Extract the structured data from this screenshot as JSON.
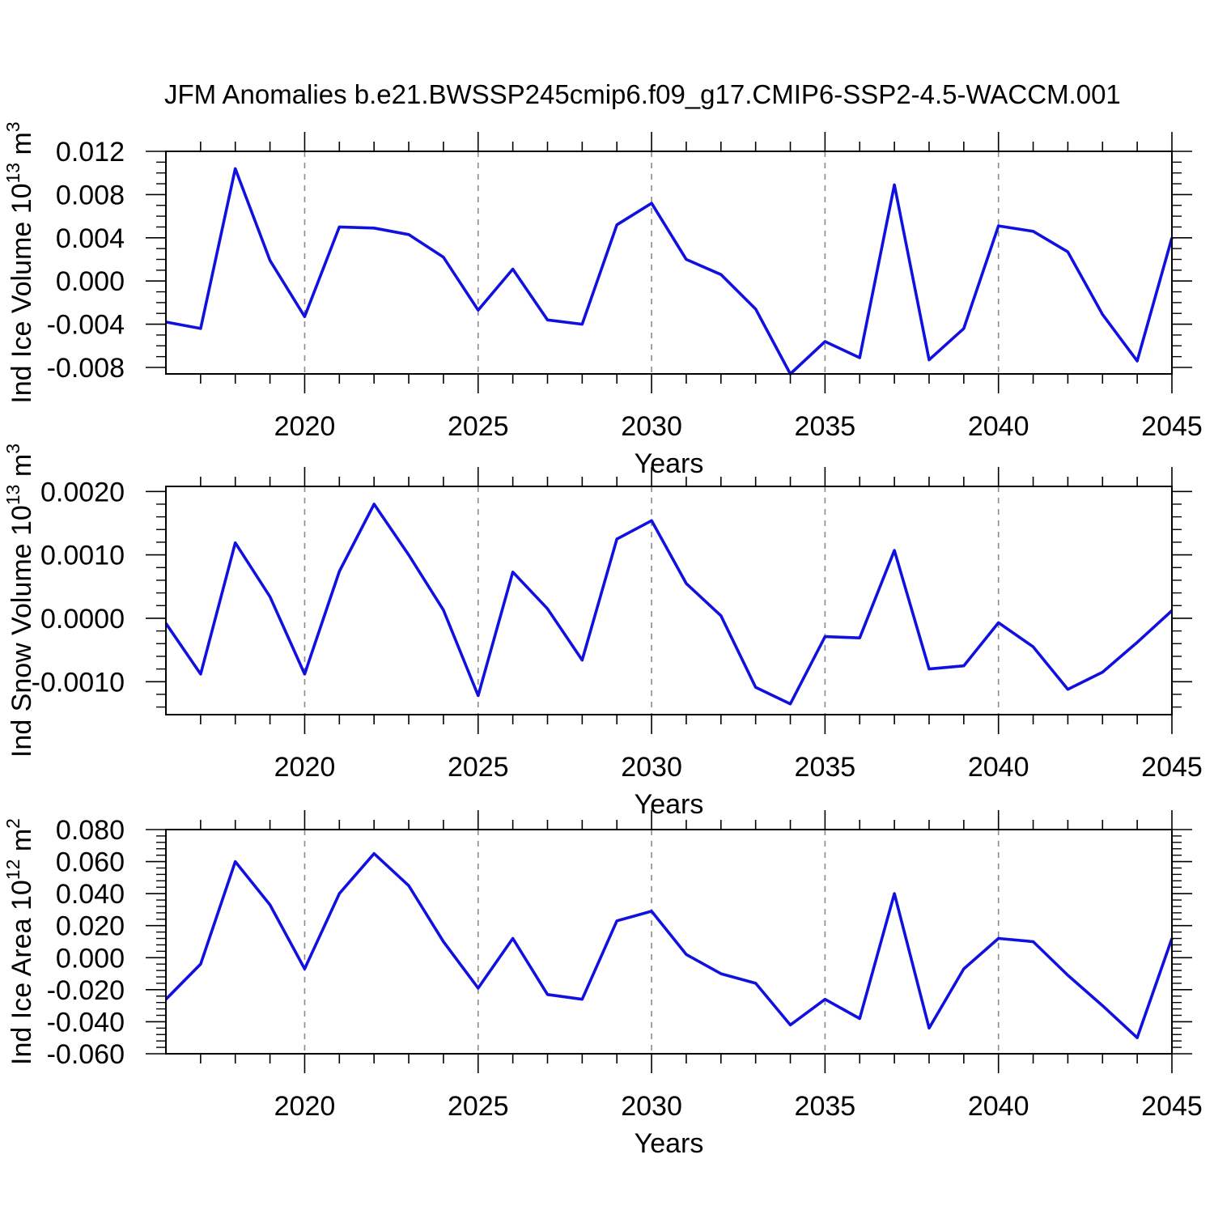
{
  "title": "JFM Anomalies b.e21.BWSSP245cmip6.f09_g17.CMIP6-SSP2-4.5-WACCM.001",
  "colors": {
    "line": "#1010e0",
    "grid": "#8c8c8c",
    "axis": "#000000"
  },
  "x_axis": {
    "label": "Years",
    "range": [
      2016,
      2045
    ],
    "major_tick_labels": [
      "2020",
      "2025",
      "2030",
      "2035",
      "2040",
      "2045"
    ],
    "major_ticks": [
      2020,
      2025,
      2030,
      2035,
      2040,
      2045
    ],
    "grid_years": [
      2020,
      2025,
      2030,
      2035,
      2040
    ],
    "minor_tick_step": 1
  },
  "chart_data": [
    {
      "type": "line",
      "id": "ice-volume",
      "ylabel": "Ind Ice Volume 10^13 m^3",
      "ylabel_parts": [
        [
          "Ind Ice Volume 10",
          false
        ],
        [
          "13",
          true
        ],
        [
          " m",
          false
        ],
        [
          "3",
          true
        ]
      ],
      "xlabel": "Years",
      "x": [
        2016,
        2017,
        2018,
        2019,
        2020,
        2021,
        2022,
        2023,
        2024,
        2025,
        2026,
        2027,
        2028,
        2029,
        2030,
        2031,
        2032,
        2033,
        2034,
        2035,
        2036,
        2037,
        2038,
        2039,
        2040,
        2041,
        2042,
        2043,
        2044,
        2045
      ],
      "values": [
        -0.0038,
        -0.0044,
        0.0104,
        0.0019,
        -0.0033,
        0.005,
        0.0049,
        0.0043,
        0.0022,
        -0.0027,
        0.0011,
        -0.0036,
        -0.004,
        0.0052,
        0.0072,
        0.002,
        0.0006,
        -0.0026,
        -0.0086,
        -0.0056,
        -0.0071,
        0.0089,
        -0.0073,
        -0.0044,
        0.0051,
        0.0046,
        0.0027,
        -0.0031,
        -0.0074,
        0.004
      ],
      "ylim": [
        -0.0086,
        0.012
      ],
      "ytick_values": [
        0.012,
        0.008,
        0.004,
        0.0,
        -0.004,
        -0.008
      ],
      "ytick_labels": [
        "0.012",
        "0.008",
        "0.004",
        "0.000",
        "-0.004",
        "-0.008"
      ],
      "yminor_step": 0.001
    },
    {
      "type": "line",
      "id": "snow-volume",
      "ylabel": "Ind Snow Volume 10^13 m^3",
      "ylabel_parts": [
        [
          "Ind Snow Volume 10",
          false
        ],
        [
          "13",
          true
        ],
        [
          " m",
          false
        ],
        [
          "3",
          true
        ]
      ],
      "xlabel": "Years",
      "x": [
        2016,
        2017,
        2018,
        2019,
        2020,
        2021,
        2022,
        2023,
        2024,
        2025,
        2026,
        2027,
        2028,
        2029,
        2030,
        2031,
        2032,
        2033,
        2034,
        2035,
        2036,
        2037,
        2038,
        2039,
        2040,
        2041,
        2042,
        2043,
        2044,
        2045
      ],
      "values": [
        -8e-05,
        -0.00088,
        0.00119,
        0.00034,
        -0.00088,
        0.00074,
        0.0018,
        0.001,
        0.00013,
        -0.00122,
        0.00073,
        0.00015,
        -0.00066,
        0.00125,
        0.00154,
        0.00055,
        4e-05,
        -0.00109,
        -0.00135,
        -0.00029,
        -0.00031,
        0.00107,
        -0.0008,
        -0.00075,
        -7e-05,
        -0.00045,
        -0.00112,
        -0.00085,
        -0.00038,
        0.00012
      ],
      "ylim": [
        -0.00152,
        0.00208
      ],
      "ytick_values": [
        0.002,
        0.001,
        0.0,
        -0.001
      ],
      "ytick_labels": [
        "0.0020",
        "0.0010",
        "0.0000",
        "-0.0010"
      ],
      "yminor_step": 0.0002
    },
    {
      "type": "line",
      "id": "ice-area",
      "ylabel": "Ind Ice Area 10^12 m^2",
      "ylabel_parts": [
        [
          "Ind Ice Area 10",
          false
        ],
        [
          "12",
          true
        ],
        [
          " m",
          false
        ],
        [
          "2",
          true
        ]
      ],
      "xlabel": "Years",
      "x": [
        2016,
        2017,
        2018,
        2019,
        2020,
        2021,
        2022,
        2023,
        2024,
        2025,
        2026,
        2027,
        2028,
        2029,
        2030,
        2031,
        2032,
        2033,
        2034,
        2035,
        2036,
        2037,
        2038,
        2039,
        2040,
        2041,
        2042,
        2043,
        2044,
        2045
      ],
      "values": [
        -0.026,
        -0.004,
        0.06,
        0.033,
        -0.007,
        0.04,
        0.065,
        0.045,
        0.01,
        -0.019,
        0.012,
        -0.023,
        -0.026,
        0.023,
        0.029,
        0.002,
        -0.01,
        -0.016,
        -0.042,
        -0.026,
        -0.038,
        0.04,
        -0.044,
        -0.007,
        0.012,
        0.01,
        -0.011,
        -0.03,
        -0.05,
        0.012
      ],
      "ylim": [
        -0.06,
        0.08
      ],
      "ytick_values": [
        0.08,
        0.06,
        0.04,
        0.02,
        0.0,
        -0.02,
        -0.04,
        -0.06
      ],
      "ytick_labels": [
        "0.080",
        "0.060",
        "0.040",
        "0.020",
        "0.000",
        "-0.020",
        "-0.040",
        "-0.060"
      ],
      "yminor_step": 0.004
    }
  ]
}
